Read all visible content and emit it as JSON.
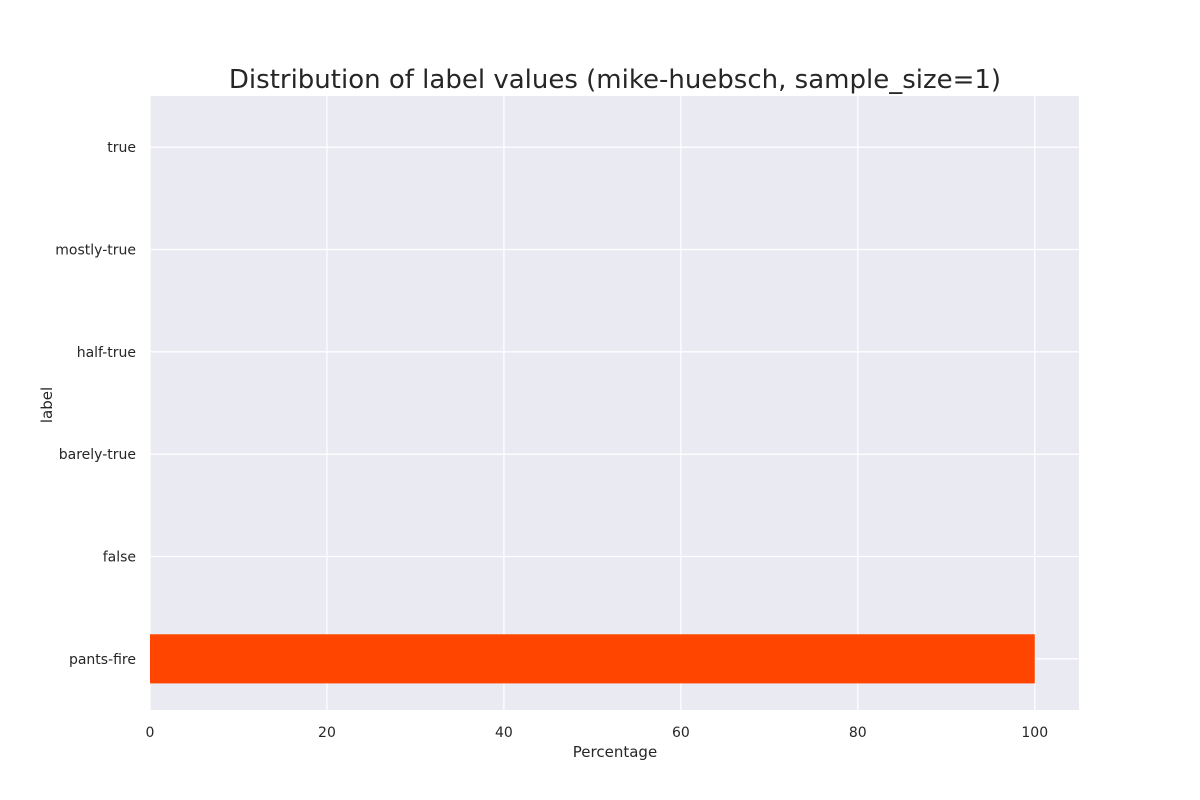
{
  "chart_data": {
    "type": "bar",
    "orientation": "horizontal",
    "title": "Distribution of label values (mike-huebsch, sample_size=1)",
    "xlabel": "Percentage",
    "ylabel": "label",
    "categories": [
      "pants-fire",
      "false",
      "barely-true",
      "half-true",
      "mostly-true",
      "true"
    ],
    "values": [
      100,
      0,
      0,
      0,
      0,
      0
    ],
    "xlim": [
      0,
      105
    ],
    "xticks": [
      0,
      20,
      40,
      60,
      80,
      100
    ],
    "xtick_labels": [
      "0",
      "20",
      "40",
      "60",
      "80",
      "100"
    ],
    "grid": true,
    "bar_color": "#ff4500",
    "background_color": "#eaeaf2",
    "grid_color": "#ffffff"
  }
}
